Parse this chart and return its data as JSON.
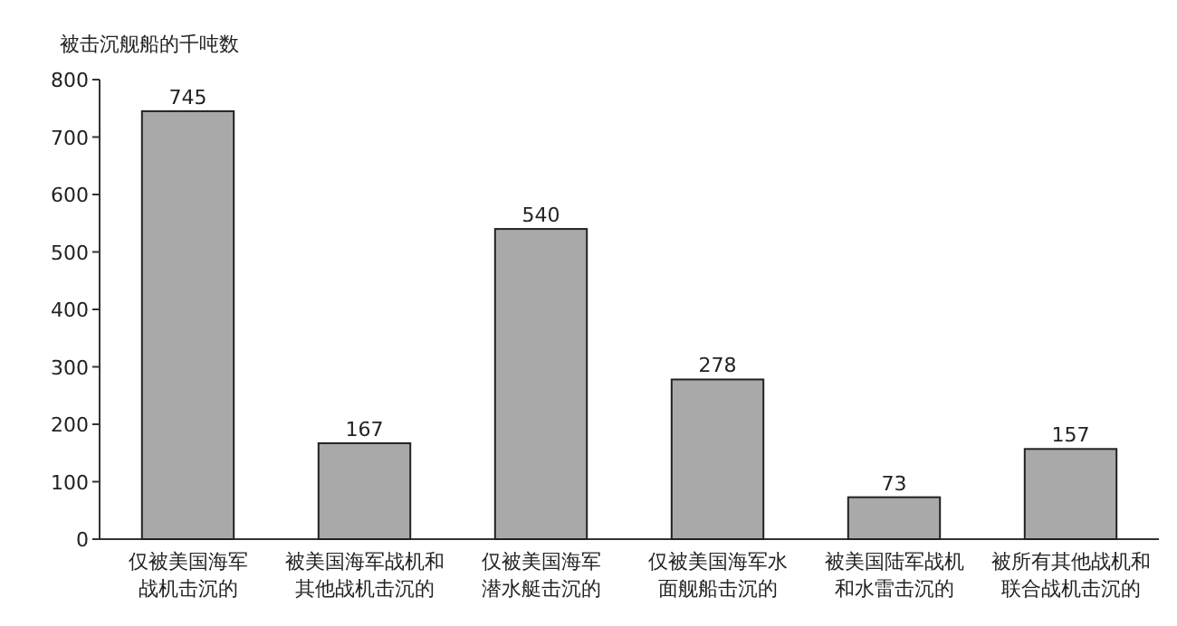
{
  "chart_data": {
    "type": "bar",
    "ylabel": "被击沉舰船的千吨数",
    "categories": [
      "仅被美国海军战机击沉的",
      "被美国海军战机和其他战机击沉的",
      "仅被美国海军潜水艇击沉的",
      "仅被美国海军水面舰船击沉的",
      "被美国陆军战机和水雷击沉的",
      "被所有其他战机和联合战机击沉的"
    ],
    "values": [
      745,
      167,
      540,
      278,
      73,
      157
    ],
    "color": "#a9a9a9",
    "ylim": [
      0,
      800
    ],
    "yticks": [
      0,
      100,
      200,
      300,
      400,
      500,
      600,
      700,
      800
    ],
    "data_labels": true
  }
}
